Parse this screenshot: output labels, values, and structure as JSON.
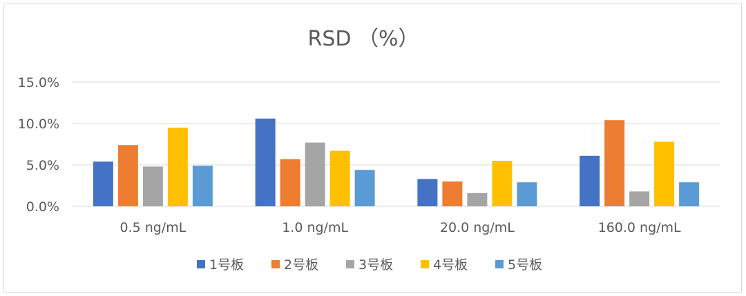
{
  "chart_data": {
    "type": "bar",
    "title": "RSD （%）",
    "categories": [
      "0.5 ng/mL",
      "1.0 ng/mL",
      "20.0 ng/mL",
      "160.0 ng/mL"
    ],
    "series": [
      {
        "name": "1号板",
        "color": "#4472C4",
        "values": [
          5.4,
          10.6,
          3.3,
          6.1
        ]
      },
      {
        "name": "2号板",
        "color": "#ED7D31",
        "values": [
          7.4,
          5.7,
          3.0,
          10.4
        ]
      },
      {
        "name": "3号板",
        "color": "#A5A5A5",
        "values": [
          4.8,
          7.7,
          1.6,
          1.8
        ]
      },
      {
        "name": "4号板",
        "color": "#FFC000",
        "values": [
          9.5,
          6.7,
          5.5,
          7.8
        ]
      },
      {
        "name": "5号板",
        "color": "#5B9BD5",
        "values": [
          4.9,
          4.4,
          2.9,
          2.9
        ]
      }
    ],
    "ylim": [
      0,
      15
    ],
    "yticks": [
      0,
      5,
      10,
      15
    ],
    "ytick_labels": [
      "0.0%",
      "5.0%",
      "10.0%",
      "15.0%"
    ],
    "grid": true,
    "legend_position": "bottom"
  }
}
